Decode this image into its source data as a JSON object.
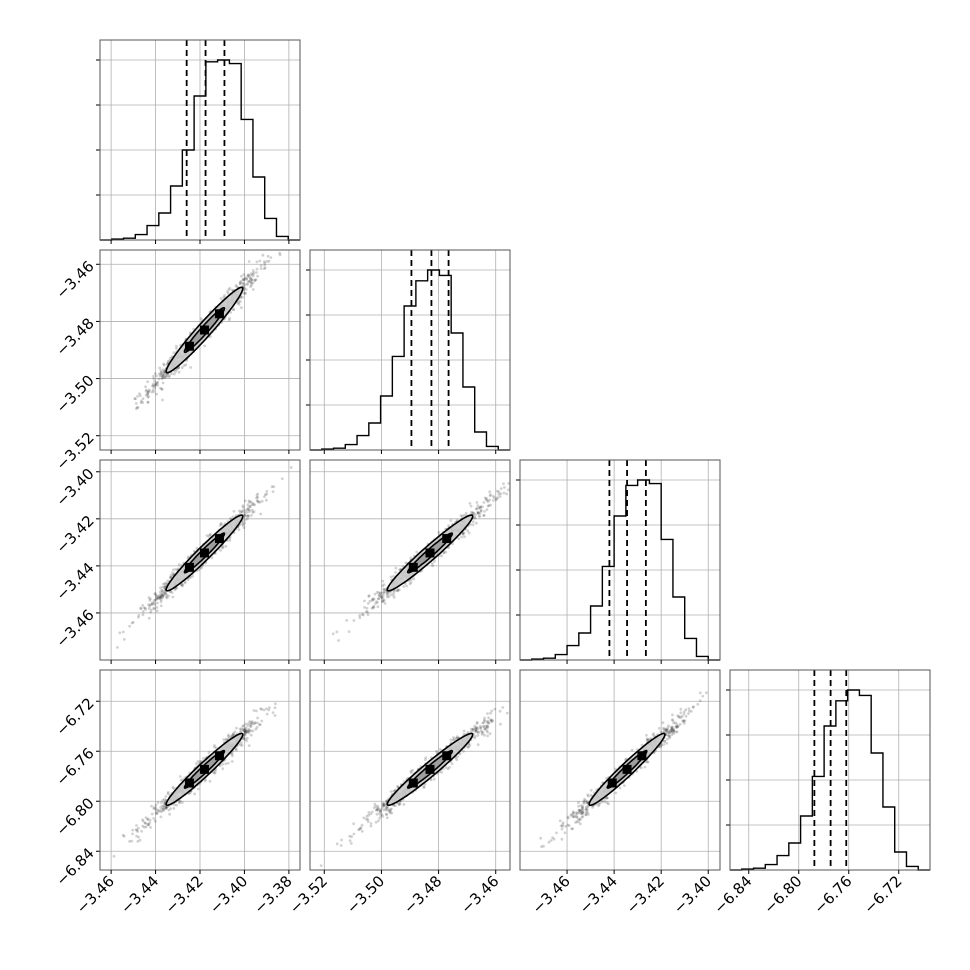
{
  "chart_data": {
    "type": "corner",
    "description_free": true,
    "parameters": [
      {
        "range": [
          -3.465,
          -3.375
        ],
        "ticks": [
          "−3.46",
          "−3.44",
          "−3.42",
          "−3.40",
          "−3.38"
        ],
        "tick_values": [
          -3.46,
          -3.44,
          -3.42,
          -3.4,
          -3.38
        ],
        "center": -3.418,
        "sigma": 0.0075,
        "quantiles": [
          -3.426,
          -3.4175,
          -3.409
        ]
      },
      {
        "range": [
          -3.525,
          -3.455
        ],
        "ticks": [
          "−3.52",
          "−3.50",
          "−3.48",
          "−3.46"
        ],
        "tick_values": [
          -3.52,
          -3.5,
          -3.48,
          -3.46
        ],
        "center": -3.483,
        "sigma": 0.0065,
        "quantiles": [
          -3.4895,
          -3.4825,
          -3.4765
        ]
      },
      {
        "range": [
          -3.48,
          -3.395
        ],
        "ticks": [
          "−3.46",
          "−3.44",
          "−3.42",
          "−3.40"
        ],
        "tick_values": [
          -3.46,
          -3.44,
          -3.42,
          -3.4
        ],
        "center": -3.4345,
        "sigma": 0.007,
        "quantiles": [
          -3.442,
          -3.4345,
          -3.4265
        ]
      },
      {
        "range": [
          -6.855,
          -6.695
        ],
        "ticks": [
          "−6.84",
          "−6.80",
          "−6.76",
          "−6.72"
        ],
        "tick_values": [
          -6.84,
          -6.8,
          -6.76,
          -6.72
        ],
        "center": -6.7745,
        "sigma": 0.0125,
        "quantiles": [
          -6.7875,
          -6.7745,
          -6.762
        ]
      }
    ],
    "histogram_heights": [
      [
        0.0,
        0.005,
        0.01,
        0.03,
        0.08,
        0.15,
        0.3,
        0.5,
        0.8,
        0.99,
        1.0,
        0.98,
        0.67,
        0.35,
        0.12,
        0.02,
        0.0
      ],
      [
        0.0,
        0.005,
        0.01,
        0.03,
        0.08,
        0.15,
        0.3,
        0.52,
        0.8,
        0.94,
        1.0,
        0.97,
        0.65,
        0.35,
        0.1,
        0.02,
        0.0
      ],
      [
        0.0,
        0.005,
        0.01,
        0.03,
        0.08,
        0.15,
        0.3,
        0.52,
        0.8,
        0.97,
        1.0,
        0.98,
        0.67,
        0.35,
        0.12,
        0.02,
        0.0
      ],
      [
        0.0,
        0.005,
        0.01,
        0.03,
        0.08,
        0.15,
        0.3,
        0.52,
        0.8,
        0.94,
        1.0,
        0.97,
        0.65,
        0.35,
        0.1,
        0.02,
        0.0
      ]
    ],
    "correlation": 0.97,
    "grid": true,
    "colors": {
      "samples": "#333333",
      "lines": "#000000",
      "grid": "#b0b0b0",
      "frame": "#555555"
    }
  }
}
